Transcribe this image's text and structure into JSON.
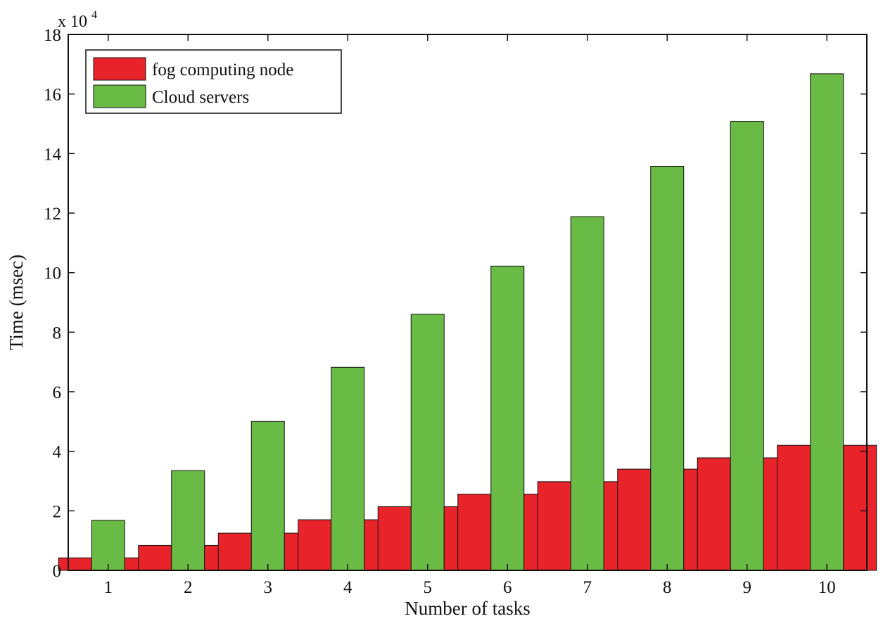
{
  "chart_data": {
    "type": "bar",
    "title": "",
    "xlabel": "Number of tasks",
    "ylabel": "Time (msec)",
    "y_scale_label": {
      "base": "x 10",
      "exponent": "4"
    },
    "y_multiplier": 10000,
    "categories": [
      "1",
      "2",
      "3",
      "4",
      "5",
      "6",
      "7",
      "8",
      "9",
      "10"
    ],
    "series": [
      {
        "name": "fog computing node",
        "color": "#e8232a",
        "values": [
          4200,
          8400,
          12500,
          17000,
          21400,
          25600,
          29800,
          34000,
          37800,
          42000
        ]
      },
      {
        "name": "Cloud servers",
        "color": "#6abb45",
        "values": [
          16800,
          33500,
          50000,
          68200,
          86000,
          102200,
          118800,
          135700,
          150800,
          166800
        ]
      }
    ],
    "ylim": [
      0,
      180000
    ],
    "y_ticks": [
      0,
      20000,
      40000,
      60000,
      80000,
      100000,
      120000,
      140000,
      160000,
      180000
    ],
    "y_tick_labels": [
      "0",
      "2",
      "4",
      "6",
      "8",
      "10",
      "12",
      "14",
      "16",
      "18"
    ],
    "grid": false,
    "legend_position": "top-left"
  }
}
